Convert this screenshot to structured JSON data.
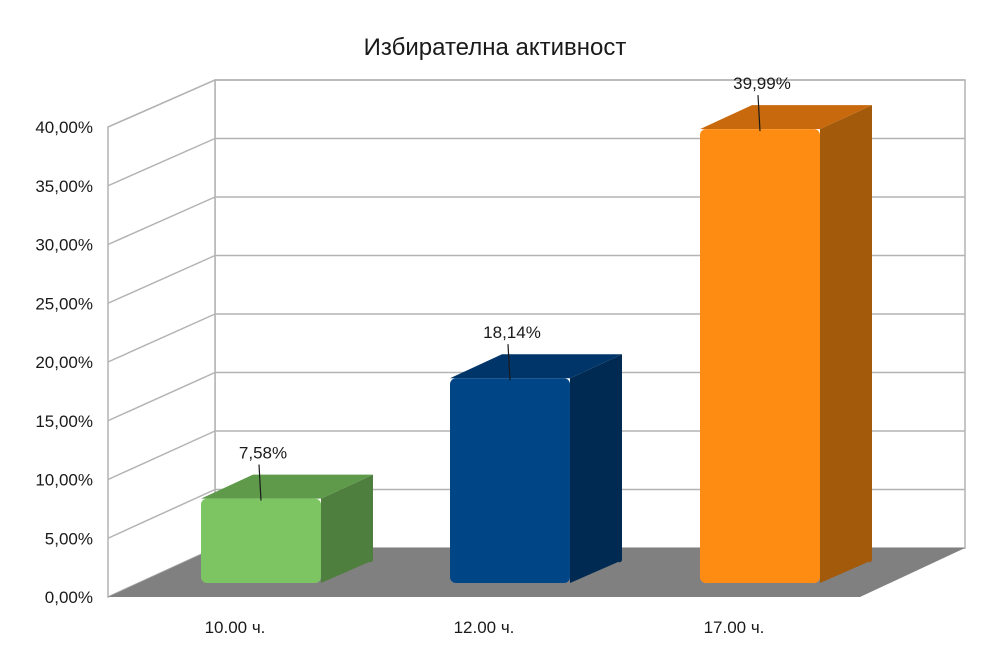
{
  "chart_data": {
    "type": "bar",
    "title": "Избирателна активност",
    "categories": [
      "10.00 ч.",
      "12.00 ч.",
      "17.00 ч."
    ],
    "values": [
      7.58,
      18.14,
      39.99
    ],
    "data_labels": [
      "7,58%",
      "18,14%",
      "39,99%"
    ],
    "y_ticks": [
      0,
      5,
      10,
      15,
      20,
      25,
      30,
      35,
      40
    ],
    "y_tick_labels": [
      "0,00%",
      "5,00%",
      "10,00%",
      "15,00%",
      "20,00%",
      "25,00%",
      "30,00%",
      "35,00%",
      "40,00%"
    ],
    "ylim": [
      0,
      40
    ],
    "grid": true,
    "legend": "none",
    "style": "3d",
    "colors": {
      "bars": [
        "#7dc462",
        "#004586",
        "#ff8c12"
      ],
      "bar_sides": [
        "#4f7f3e",
        "#002a52",
        "#a35a0b"
      ],
      "bar_tops": [
        "#5e9a4a",
        "#00356a",
        "#c7690c"
      ],
      "floor": "#808080",
      "grid": "#b3b3b3"
    }
  }
}
